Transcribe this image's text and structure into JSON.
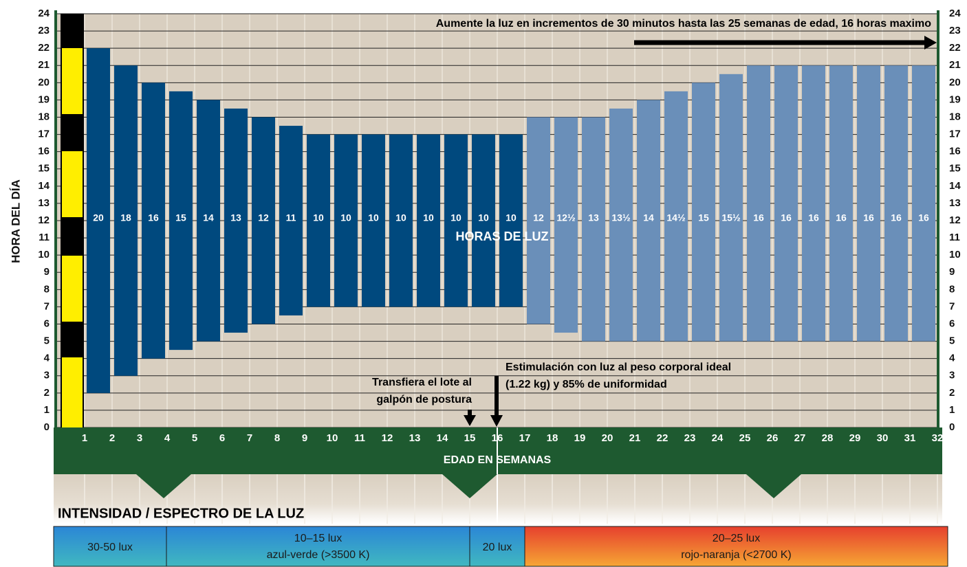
{
  "chart_data": {
    "type": "range_bar",
    "ylabel": "HORA DEL DÍA",
    "xlabel": "EDAD EN SEMANAS",
    "ylim": [
      0,
      24
    ],
    "yticks": [
      0,
      1,
      2,
      3,
      4,
      5,
      6,
      7,
      8,
      9,
      10,
      11,
      12,
      13,
      14,
      15,
      16,
      17,
      18,
      19,
      20,
      21,
      22,
      23,
      24
    ],
    "xlim": [
      0,
      32
    ],
    "xticks": [
      1,
      2,
      3,
      4,
      5,
      6,
      7,
      8,
      9,
      10,
      11,
      12,
      13,
      14,
      15,
      16,
      17,
      18,
      19,
      20,
      21,
      22,
      23,
      24,
      25,
      26,
      27,
      28,
      29,
      30,
      31,
      32
    ],
    "grid": true,
    "series": [
      {
        "color": "#00497e",
        "x": [
          1,
          2,
          3,
          4,
          5,
          6,
          7,
          8,
          9,
          10,
          11,
          12,
          13,
          14,
          15,
          16
        ],
        "low": [
          2,
          3,
          4,
          4.5,
          5,
          5.5,
          6,
          6.5,
          7,
          7,
          7,
          7,
          7,
          7,
          7,
          7
        ],
        "high": [
          22,
          21,
          20,
          19.5,
          19,
          18.5,
          18,
          17.5,
          17,
          17,
          17,
          17,
          17,
          17,
          17,
          17
        ],
        "hours": [
          20,
          18,
          16,
          15,
          14,
          13,
          12,
          11,
          10,
          10,
          10,
          10,
          10,
          10,
          10,
          10
        ],
        "value_labels": [
          "20",
          "18",
          "16",
          "15",
          "14",
          "13",
          "12",
          "11",
          "10",
          "10",
          "10",
          "10",
          "10",
          "10",
          "10",
          "10"
        ]
      },
      {
        "color": "#6a8fb9",
        "x": [
          17,
          18,
          19,
          20,
          21,
          22,
          23,
          24,
          25,
          26,
          27,
          28,
          29,
          30,
          31
        ],
        "low": [
          6,
          5.5,
          5,
          5,
          5,
          5,
          5,
          5,
          5,
          5,
          5,
          5,
          5,
          5,
          5
        ],
        "high": [
          18,
          18,
          18,
          18.5,
          19,
          19.5,
          20,
          20.5,
          21,
          21,
          21,
          21,
          21,
          21,
          21
        ],
        "hours": [
          12,
          12.5,
          13,
          13.5,
          14,
          14.5,
          15,
          15.5,
          16,
          16,
          16,
          16,
          16,
          16,
          16
        ],
        "value_labels": [
          "12",
          "12½",
          "13",
          "13½",
          "14",
          "14½",
          "15",
          "15½",
          "16",
          "16",
          "16",
          "16",
          "16",
          "16",
          "16"
        ]
      }
    ],
    "annotations": {
      "top": "Aumente la luz en incrementos de 30 minutos hasta las 25 semanas de edad, 16 horas maximo",
      "center": "HORAS DE LUZ",
      "stimulation": [
        "Estimulación con luz al peso corporal ideal",
        "(1.22 kg) y 85% de uniformidad"
      ],
      "transfer": [
        "Transfiera el lote al",
        "galpón de postura"
      ]
    },
    "intensity": {
      "title": "INTENSIDAD / ESPECTRO DE LA LUZ",
      "segments": [
        {
          "lines": [
            "30-50 lux"
          ]
        },
        {
          "lines": [
            "10–15 lux",
            "azul-verde (>3500 K)"
          ]
        },
        {
          "lines": [
            "20 lux"
          ]
        },
        {
          "lines": [
            "20–25 lux",
            "rojo-naranja (<2700 K)"
          ]
        }
      ]
    }
  }
}
